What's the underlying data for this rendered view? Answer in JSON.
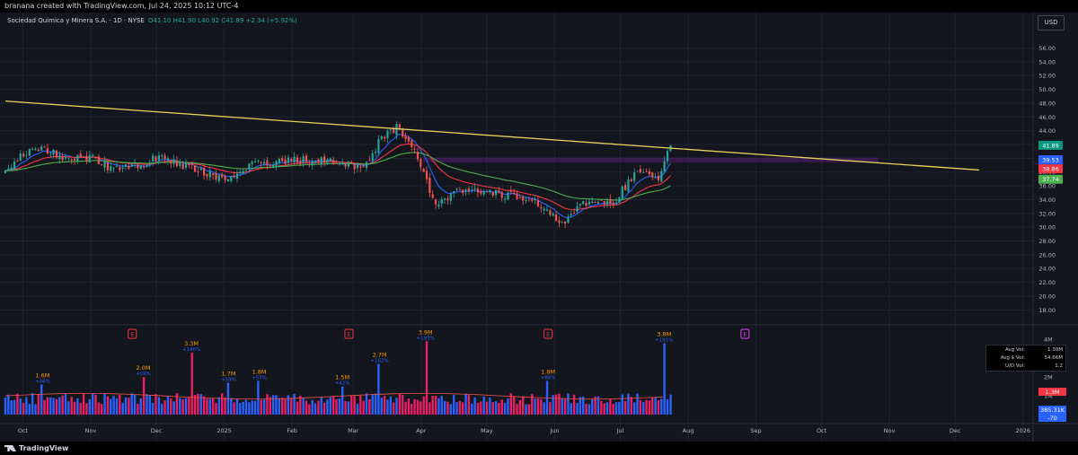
{
  "header": {
    "created_by": "branana created with TradingView.com, Jul 24, 2025 10:12 UTC-4"
  },
  "legend": {
    "symbol": "Sociedad Quimica y Minera S.A. · 1D · NYSE",
    "values": "O41.10 H41.90 L40.92 C41.89 +2.34 (+5.92%)"
  },
  "currency": "USD",
  "footer": {
    "brand": "TradingView"
  },
  "volume_stats": [
    {
      "label": "Avg Vol:",
      "value": "1.30M"
    },
    {
      "label": "Avg $ Vol:",
      "value": "54.66M"
    },
    {
      "label": "U/D Vol:",
      "value": "1.2"
    }
  ],
  "colors": {
    "background": "#14161d",
    "grid": "#1f2230",
    "up": "#26a69a",
    "down": "#ef5350",
    "trendline": "#e6d35c",
    "ema_fast": "#2962ff",
    "ema_mid": "#f23645",
    "ema_slow": "#4caf50",
    "zone": "#7b1fa2",
    "vol_up": "#2962ff",
    "vol_down": "#e91e63",
    "vol_label": "#ff9800",
    "vol_pct": "#2962ff"
  },
  "chart_data": {
    "type": "candlestick",
    "title": "Sociedad Quimica y Minera S.A. · 1D · NYSE",
    "x_ticks": [
      "Oct",
      "Nov",
      "Dec",
      "2025",
      "Feb",
      "Mar",
      "Apr",
      "May",
      "Jun",
      "Jul",
      "Aug",
      "Sep",
      "Oct",
      "Nov",
      "Dec",
      "2026"
    ],
    "y_ticks": [
      "56.00",
      "54.00",
      "52.00",
      "50.00",
      "48.00",
      "46.00",
      "44.00",
      "42.00",
      "40.00",
      "38.00",
      "36.00",
      "34.00",
      "32.00",
      "30.00",
      "28.00",
      "26.00",
      "24.00",
      "22.00",
      "20.00",
      "18.00"
    ],
    "ylim": [
      17,
      57.5
    ],
    "price_path": [
      {
        "date": "2024-09-23",
        "close": 38.0
      },
      {
        "date": "2024-10-01",
        "close": 40.5
      },
      {
        "date": "2024-10-10",
        "close": 41.6
      },
      {
        "date": "2024-10-21",
        "close": 40.0
      },
      {
        "date": "2024-11-01",
        "close": 40.0
      },
      {
        "date": "2024-11-12",
        "close": 38.3
      },
      {
        "date": "2024-11-25",
        "close": 39.2
      },
      {
        "date": "2024-12-03",
        "close": 40.3
      },
      {
        "date": "2024-12-16",
        "close": 38.6
      },
      {
        "date": "2025-01-02",
        "close": 36.8
      },
      {
        "date": "2025-01-15",
        "close": 39.3
      },
      {
        "date": "2025-02-03",
        "close": 39.8
      },
      {
        "date": "2025-02-20",
        "close": 39.6
      },
      {
        "date": "2025-03-05",
        "close": 38.3
      },
      {
        "date": "2025-03-13",
        "close": 42.5
      },
      {
        "date": "2025-03-21",
        "close": 44.5
      },
      {
        "date": "2025-03-31",
        "close": 40.0
      },
      {
        "date": "2025-04-07",
        "close": 33.0
      },
      {
        "date": "2025-04-17",
        "close": 35.0
      },
      {
        "date": "2025-05-01",
        "close": 35.4
      },
      {
        "date": "2025-05-15",
        "close": 34.3
      },
      {
        "date": "2025-05-23",
        "close": 34.0
      },
      {
        "date": "2025-06-04",
        "close": 30.4
      },
      {
        "date": "2025-06-16",
        "close": 33.8
      },
      {
        "date": "2025-06-27",
        "close": 33.2
      },
      {
        "date": "2025-07-08",
        "close": 38.0
      },
      {
        "date": "2025-07-14",
        "close": 38.0
      },
      {
        "date": "2025-07-18",
        "close": 36.5
      },
      {
        "date": "2025-07-24",
        "close": 41.89
      }
    ],
    "last_bar": {
      "open": 41.1,
      "high": 41.9,
      "low": 40.92,
      "close": 41.89,
      "change": 2.34,
      "change_pct": 5.92
    },
    "trendline": {
      "start": {
        "date": "2024-09-23",
        "price": 48.3
      },
      "end": {
        "date": "2025-12-12",
        "price": 38.3
      }
    },
    "resistance_zone": {
      "from": "2025-04-02",
      "to": "2025-10-27",
      "low": 39.4,
      "high": 40.1
    },
    "price_labels": [
      {
        "value": "41.89",
        "price": 41.89,
        "color": "#089981"
      },
      {
        "value": "39.53",
        "price": 39.53,
        "color": "#2962ff"
      },
      {
        "value": "38.86",
        "price": 38.86,
        "color": "#f23645"
      },
      {
        "value": "37.74",
        "price": 37.74,
        "color": "#4caf50"
      }
    ],
    "earnings_markers": [
      {
        "date": "2024-11-20",
        "label": "E",
        "color": "#f23645"
      },
      {
        "date": "2025-02-27",
        "label": "E",
        "color": "#f23645"
      },
      {
        "date": "2025-05-29",
        "label": "E",
        "color": "#f23645"
      },
      {
        "date": "2025-08-27",
        "label": "E",
        "color": "#e040fb"
      }
    ],
    "volume": {
      "y_ticks": [
        "4M",
        "3M",
        "2M",
        "1M"
      ],
      "peaks": [
        {
          "date": "2024-10-10",
          "value": "1.6M",
          "change": "+46%"
        },
        {
          "date": "2024-11-25",
          "value": "2.0M",
          "change": "+59%"
        },
        {
          "date": "2024-12-17",
          "value": "3.3M",
          "change": "+146%"
        },
        {
          "date": "2025-01-03",
          "value": "1.7M",
          "change": "+59%"
        },
        {
          "date": "2025-01-17",
          "value": "1.8M",
          "change": "+57%"
        },
        {
          "date": "2025-02-24",
          "value": "1.5M",
          "change": "+42%"
        },
        {
          "date": "2025-03-13",
          "value": "2.7M",
          "change": "+162%"
        },
        {
          "date": "2025-04-03",
          "value": "3.9M",
          "change": "+193%"
        },
        {
          "date": "2025-05-29",
          "value": "1.8M",
          "change": "+86%"
        },
        {
          "date": "2025-07-21",
          "value": "3.8M",
          "change": "+191%"
        }
      ],
      "current_labels": [
        {
          "value": "1.3M",
          "color": "#f23645"
        },
        {
          "value": "385.31K",
          "color": "#2962ff"
        },
        {
          "value": "-70",
          "color": "#2962ff"
        }
      ]
    }
  }
}
